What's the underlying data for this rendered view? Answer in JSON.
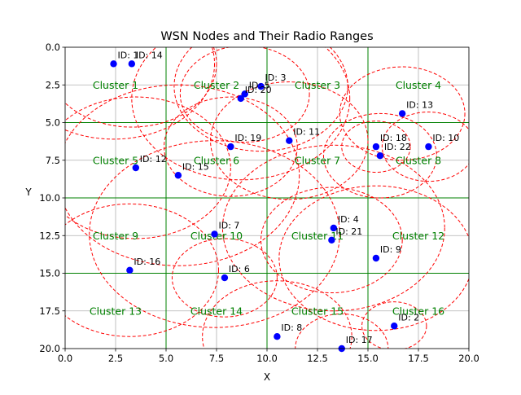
{
  "chart_data": {
    "type": "scatter",
    "title": "WSN Nodes and Their Radio Ranges",
    "xlabel": "X",
    "ylabel": "Y",
    "xlim": [
      0,
      20
    ],
    "ylim": [
      20,
      0
    ],
    "y_inverted": true,
    "xticks": [
      "0.0",
      "2.5",
      "5.0",
      "7.5",
      "10.0",
      "12.5",
      "15.0",
      "17.5",
      "20.0"
    ],
    "yticks": [
      "0.0",
      "2.5",
      "5.0",
      "7.5",
      "10.0",
      "12.5",
      "15.0",
      "17.5",
      "20.0"
    ],
    "grid": true,
    "colors": {
      "node": "#0000ff",
      "range": "#ff0000",
      "cluster_line": "#008000",
      "cluster_label": "#008000",
      "grid": "#b0b0b0"
    },
    "cluster_boundaries": {
      "x": [
        5,
        10,
        15
      ],
      "y": [
        5,
        10,
        15
      ]
    },
    "clusters": [
      {
        "label": "Cluster 1",
        "x": 2.5,
        "y": 2.5
      },
      {
        "label": "Cluster 2",
        "x": 7.5,
        "y": 2.5
      },
      {
        "label": "Cluster 3",
        "x": 12.5,
        "y": 2.5
      },
      {
        "label": "Cluster 4",
        "x": 17.5,
        "y": 2.5
      },
      {
        "label": "Cluster 5",
        "x": 2.5,
        "y": 7.5
      },
      {
        "label": "Cluster 6",
        "x": 7.5,
        "y": 7.5
      },
      {
        "label": "Cluster 7",
        "x": 12.5,
        "y": 7.5
      },
      {
        "label": "Cluster 8",
        "x": 17.5,
        "y": 7.5
      },
      {
        "label": "Cluster 9",
        "x": 2.5,
        "y": 12.5
      },
      {
        "label": "Cluster 10",
        "x": 7.5,
        "y": 12.5
      },
      {
        "label": "Cluster 11",
        "x": 12.5,
        "y": 12.5
      },
      {
        "label": "Cluster 12",
        "x": 17.5,
        "y": 12.5
      },
      {
        "label": "Cluster 13",
        "x": 2.5,
        "y": 17.5
      },
      {
        "label": "Cluster 14",
        "x": 7.5,
        "y": 17.5
      },
      {
        "label": "Cluster 15",
        "x": 12.5,
        "y": 17.5
      },
      {
        "label": "Cluster 16",
        "x": 17.5,
        "y": 17.5
      }
    ],
    "nodes": [
      {
        "label": "ID: 2",
        "x": 16.3,
        "y": 18.5,
        "range": 1.6
      },
      {
        "label": "ID: 3",
        "x": 9.7,
        "y": 2.6,
        "range": 4.3
      },
      {
        "label": "ID: 4",
        "x": 13.3,
        "y": 12.0,
        "range": 5.5
      },
      {
        "label": "ID: 5",
        "x": 8.9,
        "y": 3.1,
        "range": 3.2
      },
      {
        "label": "ID: 6",
        "x": 7.9,
        "y": 15.3,
        "range": 2.6
      },
      {
        "label": "ID: 7",
        "x": 7.4,
        "y": 12.4,
        "range": 6.2
      },
      {
        "label": "ID: 8",
        "x": 10.5,
        "y": 19.2,
        "range": 3.7
      },
      {
        "label": "ID: 9",
        "x": 15.4,
        "y": 14.0,
        "range": 4.8
      },
      {
        "label": "ID: 10",
        "x": 18.0,
        "y": 6.6,
        "range": 2.3
      },
      {
        "label": "ID: 11",
        "x": 11.1,
        "y": 6.2,
        "range": 3.9
      },
      {
        "label": "ID: 12",
        "x": 3.5,
        "y": 8.0,
        "range": 4.7
      },
      {
        "label": "ID: 13",
        "x": 16.7,
        "y": 4.4,
        "range": 3.1
      },
      {
        "label": "ID: 14",
        "x": 3.3,
        "y": 1.1,
        "range": 4.2
      },
      {
        "label": "ID: 15",
        "x": 5.6,
        "y": 8.5,
        "range": 6.0
      },
      {
        "label": "ID: 16",
        "x": 3.2,
        "y": 14.8,
        "range": 4.4
      },
      {
        "label": "ID: 17",
        "x": 13.7,
        "y": 20.0,
        "range": 2.3
      },
      {
        "label": "ID: 18",
        "x": 15.4,
        "y": 6.6,
        "range": 1.7
      },
      {
        "label": "ID: 19",
        "x": 8.2,
        "y": 6.6,
        "range": 3.3
      },
      {
        "label": "ID: 20",
        "x": 8.7,
        "y": 3.4,
        "range": 5.4
      },
      {
        "label": "ID: 21",
        "x": 13.2,
        "y": 12.8,
        "range": 3.5
      },
      {
        "label": "ID: 22",
        "x": 15.6,
        "y": 7.2,
        "range": 2.8
      },
      {
        "label": "ID: 1",
        "x": 2.4,
        "y": 1.1,
        "range": 5.0
      }
    ]
  }
}
